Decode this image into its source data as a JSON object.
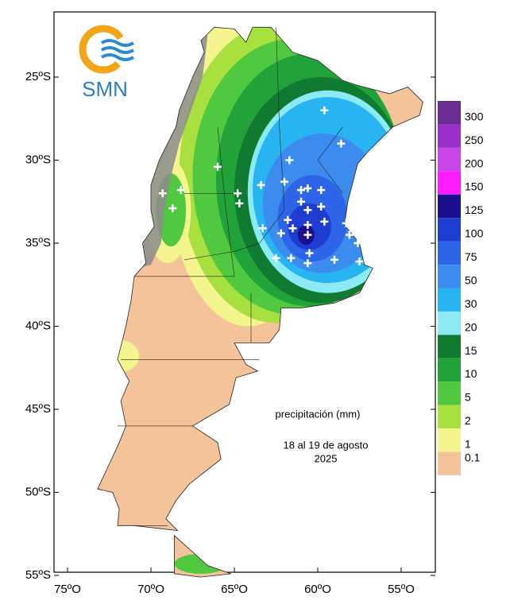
{
  "logo": {
    "text": "SMN"
  },
  "axes": {
    "lat_labels": [
      "25ºS",
      "30ºS",
      "35ºS",
      "40ºS",
      "45ºS",
      "50ºS",
      "55ºS"
    ],
    "lon_labels": [
      "75ºO",
      "70ºO",
      "65ºO",
      "60ºO",
      "55ºO"
    ]
  },
  "legend": {
    "items": [
      {
        "label": "300",
        "color": "#6a2c91"
      },
      {
        "label": "250",
        "color": "#9b30c8"
      },
      {
        "label": "200",
        "color": "#c845e6"
      },
      {
        "label": "150",
        "color": "#ff1cff"
      },
      {
        "label": "125",
        "color": "#1a0f8c"
      },
      {
        "label": "100",
        "color": "#1e3ccf"
      },
      {
        "label": "75",
        "color": "#2e64e8"
      },
      {
        "label": "50",
        "color": "#3c8cf0"
      },
      {
        "label": "30",
        "color": "#28b4f0"
      },
      {
        "label": "20",
        "color": "#8ceaf5"
      },
      {
        "label": "15",
        "color": "#0f7a30"
      },
      {
        "label": "10",
        "color": "#22a33a"
      },
      {
        "label": "5",
        "color": "#50c840"
      },
      {
        "label": "2",
        "color": "#a8e040"
      },
      {
        "label": "1",
        "color": "#f5f590"
      },
      {
        "label": "0.1",
        "color": "#f5c39a"
      }
    ]
  },
  "annotation": {
    "title": "precipitación (mm)",
    "dates": "18 al 19 de agosto",
    "year": "2025"
  }
}
